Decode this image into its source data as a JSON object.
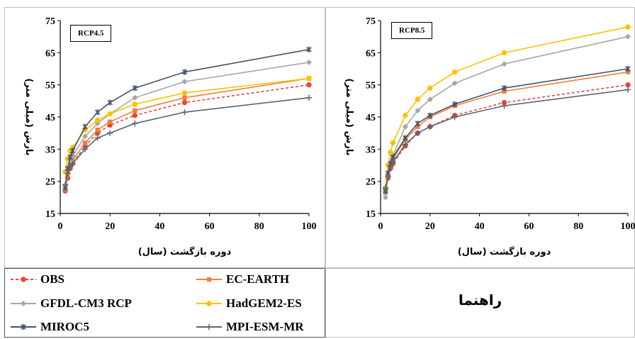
{
  "chart_data": [
    {
      "type": "line",
      "title": "RCP4.5",
      "xlabel": "دوره بازگشت (سال)",
      "ylabel": "بارش (میلی متر)",
      "xlim": [
        0,
        100
      ],
      "ylim": [
        15,
        75
      ],
      "xticks": [
        0,
        20,
        40,
        60,
        80,
        100
      ],
      "yticks": [
        15,
        25,
        35,
        45,
        55,
        65,
        75
      ],
      "x": [
        2,
        3,
        4,
        5,
        10,
        15,
        20,
        30,
        50,
        100
      ],
      "series": [
        {
          "name": "OBS",
          "values": [
            22,
            26,
            29,
            30.5,
            36,
            40,
            42.5,
            45.5,
            49.5,
            55
          ]
        },
        {
          "name": "EC-EARTH",
          "values": [
            22.5,
            27,
            30,
            31.5,
            37,
            41,
            43.5,
            47,
            51,
            57
          ]
        },
        {
          "name": "GFDL-CM3 RCP",
          "values": [
            23,
            28,
            31.5,
            33,
            39,
            43,
            46,
            51,
            56,
            62
          ]
        },
        {
          "name": "HadGEM2-ES",
          "values": [
            28,
            32,
            34.5,
            35.5,
            41,
            44,
            46,
            49,
            52.5,
            57
          ]
        },
        {
          "name": "MIROC5",
          "values": [
            23,
            29,
            32.5,
            34.5,
            42,
            46.5,
            49.5,
            54,
            59,
            66
          ]
        },
        {
          "name": "MPI-ESM-MR",
          "values": [
            24,
            27.5,
            29.5,
            30.5,
            35,
            38.5,
            40,
            43,
            46.5,
            51
          ]
        }
      ]
    },
    {
      "type": "line",
      "title": "RCP8.5",
      "xlabel": "دوره بازگشت (سال)",
      "ylabel": "بارش (میلی متر)",
      "xlim": [
        0,
        100
      ],
      "ylim": [
        15,
        75
      ],
      "xticks": [
        0,
        20,
        40,
        60,
        80,
        100
      ],
      "yticks": [
        15,
        25,
        35,
        45,
        55,
        65,
        75
      ],
      "x": [
        2,
        3,
        4,
        5,
        10,
        15,
        20,
        30,
        50,
        100
      ],
      "series": [
        {
          "name": "OBS",
          "values": [
            22,
            26,
            29,
            30.5,
            36,
            40,
            42,
            45.5,
            49.5,
            55
          ]
        },
        {
          "name": "EC-EARTH",
          "values": [
            21.5,
            27,
            30,
            32,
            38,
            42,
            45,
            48.5,
            53,
            59
          ]
        },
        {
          "name": "GFDL-CM3 RCP",
          "values": [
            20,
            27,
            31,
            33,
            42,
            47,
            50.5,
            55.5,
            61.5,
            70
          ]
        },
        {
          "name": "HadGEM2-ES",
          "values": [
            23,
            30,
            34,
            37,
            45.5,
            50.5,
            54,
            59,
            65,
            73
          ]
        },
        {
          "name": "MIROC5",
          "values": [
            22,
            27.5,
            30.5,
            32.5,
            38.5,
            43,
            45.5,
            49,
            54,
            60
          ]
        },
        {
          "name": "MPI-ESM-MR",
          "values": [
            23,
            26.5,
            29.5,
            31,
            36.5,
            40,
            42,
            45,
            48.5,
            53.5
          ]
        }
      ]
    }
  ],
  "series_styles": [
    {
      "name": "OBS",
      "color": "#e8463a",
      "dash": true,
      "marker": "circle"
    },
    {
      "name": "EC-EARTH",
      "color": "#f07f3c",
      "dash": false,
      "marker": "square"
    },
    {
      "name": "GFDL-CM3 RCP",
      "color": "#a6a6a6",
      "dash": false,
      "marker": "diamond"
    },
    {
      "name": "HadGEM2-ES",
      "color": "#ffc000",
      "dash": false,
      "marker": "circle"
    },
    {
      "name": "MIROC5",
      "color": "#44546a",
      "dash": false,
      "marker": "star"
    },
    {
      "name": "MPI-ESM-MR",
      "color": "#5a6474",
      "dash": false,
      "marker": "plus"
    }
  ],
  "legend": {
    "items": [
      "OBS",
      "EC-EARTH",
      "GFDL-CM3 RCP",
      "HadGEM2-ES",
      "MIROC5",
      "MPI-ESM-MR"
    ]
  },
  "guide_label": "راهنما"
}
